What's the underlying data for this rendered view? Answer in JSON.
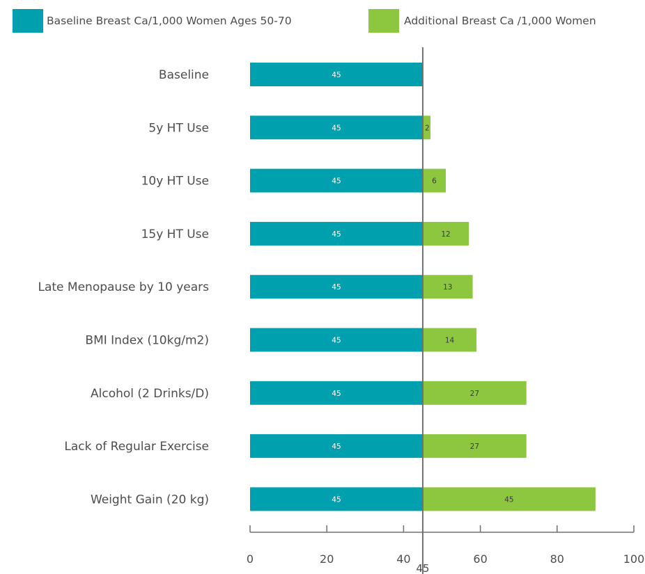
{
  "chart_data": {
    "type": "bar",
    "stacked": true,
    "orientation": "horizontal",
    "categories": [
      "Baseline",
      "5y HT Use",
      "10y HT Use",
      "15y HT Use",
      "Late Menopause by 10 years",
      "BMI Index (10kg/m2)",
      "Alcohol (2 Drinks/D)",
      "Lack of Regular Exercise",
      "Weight Gain (20 kg)"
    ],
    "series": [
      {
        "name": "Baseline Breast Ca/1,000 Women Ages 50-70",
        "color": "#00a0ae",
        "values": [
          45,
          45,
          45,
          45,
          45,
          45,
          45,
          45,
          45
        ],
        "labels": [
          "45",
          "45",
          "45",
          "45",
          "45",
          "45",
          "45",
          "45",
          "45"
        ]
      },
      {
        "name": "Additional Breast Ca /1,000 Women",
        "color": "#8dc63f",
        "values": [
          0,
          2,
          6,
          12,
          13,
          14,
          27,
          27,
          45
        ],
        "labels": [
          "",
          "2",
          "6",
          "12",
          "13",
          "14",
          "27",
          "27",
          "45"
        ]
      }
    ],
    "xlim": [
      0,
      100
    ],
    "xticks": [
      "0",
      "20",
      "40",
      "60",
      "80",
      "100"
    ],
    "reference_line": {
      "value": 45,
      "label": "45"
    },
    "legend_position": "top",
    "grid": false
  }
}
